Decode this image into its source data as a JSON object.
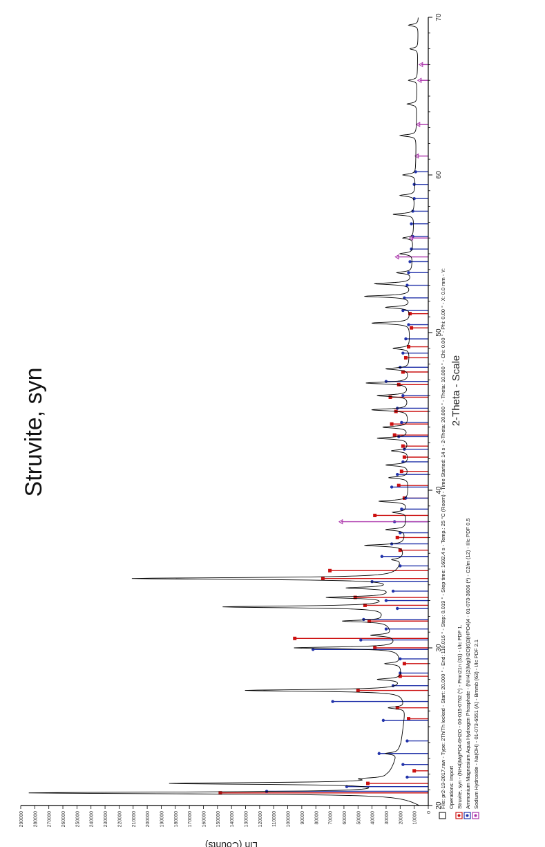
{
  "chart_data": {
    "type": "line",
    "orientation": "rotated-90-clockwise",
    "title": "Struvite, syn",
    "xlabel": "2-Theta - Scale",
    "ylabel": "Lin (Counts)",
    "xlim": [
      20,
      70
    ],
    "ylim": [
      0,
      290000
    ],
    "x_ticks": [
      20,
      30,
      40,
      50,
      60,
      70
    ],
    "y_ticks": [
      0,
      10000,
      20000,
      30000,
      40000,
      50000,
      60000,
      70000,
      80000,
      90000,
      100000,
      110000,
      120000,
      130000,
      140000,
      150000,
      160000,
      170000,
      180000,
      190000,
      200000,
      210000,
      220000,
      230000,
      240000,
      250000,
      260000,
      270000,
      280000,
      290000
    ],
    "grid": false,
    "series": [
      {
        "name": "File: pr2-19-2017.raw - Type: 2Th/Th locked - Start: 20.000 ° - End: 110.016 ° - Step: 0.019 ° - Step time: 1692.4 s - Temp.: 25 °C (Room) - Time Started: 14 s - 2-Theta: 20.000 ° - Theta: 10.000 ° - Chi: 0.00 ° - Phi: 0.00 ° - X: 0.0 mm - Y:",
        "color": "#000000",
        "baseline": [
          [
            20,
            4000
          ],
          [
            21,
            20000
          ],
          [
            22,
            26000
          ],
          [
            24,
            19000
          ],
          [
            26,
            16000
          ],
          [
            30,
            20000
          ],
          [
            32,
            30000
          ],
          [
            34,
            22000
          ],
          [
            36,
            17000
          ],
          [
            40,
            14000
          ],
          [
            45,
            14000
          ],
          [
            50,
            13000
          ],
          [
            55,
            11000
          ],
          [
            60,
            9000
          ],
          [
            65,
            8000
          ],
          [
            70,
            7000
          ]
        ],
        "peaks": [
          [
            20.8,
            282000
          ],
          [
            21.4,
            180000
          ],
          [
            21.7,
            40000
          ],
          [
            23.3,
            30000
          ],
          [
            26.2,
            28000
          ],
          [
            27.3,
            130000
          ],
          [
            28.0,
            35000
          ],
          [
            29.0,
            30000
          ],
          [
            30.0,
            95000
          ],
          [
            30.8,
            40000
          ],
          [
            31.7,
            60000
          ],
          [
            32.6,
            145000
          ],
          [
            33.2,
            70000
          ],
          [
            33.8,
            55000
          ],
          [
            34.4,
            210000
          ],
          [
            35.6,
            25000
          ],
          [
            36.5,
            45000
          ],
          [
            37.5,
            30000
          ],
          [
            38.6,
            25000
          ],
          [
            39.3,
            35000
          ],
          [
            40.8,
            28000
          ],
          [
            41.6,
            30000
          ],
          [
            42.5,
            26000
          ],
          [
            43.3,
            36000
          ],
          [
            44.0,
            32000
          ],
          [
            45.1,
            40000
          ],
          [
            46.0,
            36000
          ],
          [
            46.8,
            44000
          ],
          [
            47.7,
            30000
          ],
          [
            49.0,
            25000
          ],
          [
            50.6,
            40000
          ],
          [
            51.6,
            30000
          ],
          [
            52.3,
            45000
          ],
          [
            53.1,
            38000
          ],
          [
            53.8,
            22000
          ],
          [
            55.0,
            20000
          ],
          [
            56.0,
            18000
          ],
          [
            57.5,
            25000
          ],
          [
            58.7,
            20000
          ],
          [
            60.0,
            18000
          ],
          [
            62.5,
            20000
          ],
          [
            64.5,
            15000
          ],
          [
            66.0,
            14000
          ],
          [
            68.0,
            13000
          ],
          [
            69.5,
            14000
          ]
        ]
      }
    ],
    "reference_patterns": [
      {
        "legend": "Struvite, syn - (NH4)MgPO4·6H2O - 00-015-0762 (*) - Pmn21n (31) - I/Ic PDF 1.",
        "color": "#cc1111",
        "marker": "square",
        "peaks": [
          [
            20.8,
            148000
          ],
          [
            21.4,
            43000
          ],
          [
            22.2,
            10000
          ],
          [
            25.5,
            14000
          ],
          [
            26.2,
            22000
          ],
          [
            27.3,
            50000
          ],
          [
            28.2,
            20000
          ],
          [
            29.0,
            17000
          ],
          [
            30.0,
            38000
          ],
          [
            30.6,
            95000
          ],
          [
            31.7,
            42000
          ],
          [
            32.7,
            45000
          ],
          [
            33.2,
            52000
          ],
          [
            34.4,
            75000
          ],
          [
            34.9,
            70000
          ],
          [
            36.2,
            20000
          ],
          [
            37.0,
            22000
          ],
          [
            38.4,
            38000
          ],
          [
            39.5,
            17000
          ],
          [
            40.3,
            21000
          ],
          [
            41.2,
            19000
          ],
          [
            42.1,
            17000
          ],
          [
            42.8,
            18000
          ],
          [
            43.5,
            24000
          ],
          [
            44.2,
            26000
          ],
          [
            45.0,
            23000
          ],
          [
            45.9,
            27000
          ],
          [
            46.7,
            21000
          ],
          [
            47.5,
            18000
          ],
          [
            48.4,
            16000
          ],
          [
            49.1,
            14000
          ],
          [
            50.3,
            12000
          ],
          [
            51.2,
            13000
          ]
        ]
      },
      {
        "legend": "Ammonium Magnesium Aqua Hydrogen Phosphate - (NH4)2(Mg(H2O)6)3(HPO4)4 - 01-073-3606 (*) - C2/m (12) - I/Ic PDF 0.5",
        "color": "#2233aa",
        "marker": "circle",
        "peaks": [
          [
            20.9,
            115000
          ],
          [
            21.2,
            58000
          ],
          [
            21.8,
            15000
          ],
          [
            22.6,
            18000
          ],
          [
            23.3,
            35000
          ],
          [
            24.1,
            15000
          ],
          [
            25.4,
            32000
          ],
          [
            26.6,
            68000
          ],
          [
            27.6,
            25000
          ],
          [
            28.4,
            20000
          ],
          [
            29.3,
            20000
          ],
          [
            29.9,
            82000
          ],
          [
            30.5,
            48000
          ],
          [
            31.2,
            30000
          ],
          [
            31.8,
            46000
          ],
          [
            32.5,
            22000
          ],
          [
            33.0,
            30000
          ],
          [
            33.6,
            25000
          ],
          [
            34.2,
            40000
          ],
          [
            35.2,
            20000
          ],
          [
            35.8,
            33000
          ],
          [
            36.6,
            26000
          ],
          [
            37.3,
            20000
          ],
          [
            38.0,
            24000
          ],
          [
            38.8,
            19000
          ],
          [
            39.5,
            16000
          ],
          [
            40.2,
            26000
          ],
          [
            41.0,
            22000
          ],
          [
            41.8,
            18000
          ],
          [
            42.6,
            17000
          ],
          [
            43.4,
            21000
          ],
          [
            44.3,
            19000
          ],
          [
            45.2,
            22000
          ],
          [
            46.0,
            18000
          ],
          [
            46.9,
            30000
          ],
          [
            47.8,
            20000
          ],
          [
            48.7,
            18000
          ],
          [
            49.6,
            16000
          ],
          [
            50.5,
            14000
          ],
          [
            51.4,
            18000
          ],
          [
            52.2,
            17000
          ],
          [
            53.0,
            15000
          ],
          [
            53.8,
            14000
          ],
          [
            54.5,
            13000
          ],
          [
            55.3,
            12000
          ],
          [
            56.1,
            11000
          ],
          [
            56.9,
            12000
          ],
          [
            57.7,
            11000
          ],
          [
            58.5,
            10000
          ],
          [
            59.4,
            10000
          ],
          [
            60.2,
            9000
          ]
        ]
      },
      {
        "legend": "Sodium Hydroxide - Na(OH) - 01-073-6551 (A) - Bmmb (63) - I/Ic PDF 2.1",
        "color": "#aa33aa",
        "marker": "triangle",
        "peaks": [
          [
            38.0,
            62000
          ],
          [
            54.8,
            22000
          ],
          [
            56.0,
            12000
          ],
          [
            61.2,
            8000
          ],
          [
            63.2,
            7000
          ],
          [
            66.0,
            6000
          ],
          [
            67.0,
            5000
          ]
        ]
      }
    ],
    "legend_header": "Operations: Import",
    "legend_placement": "bottom"
  }
}
